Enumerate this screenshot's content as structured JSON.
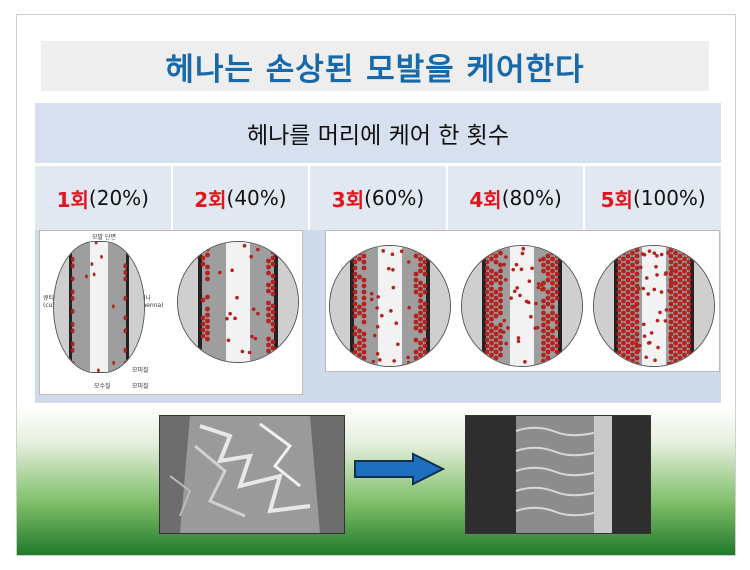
{
  "title": "헤나는 손상된 모발을 케어한다",
  "table_header": "헤나를  머리에 케어 한 횟수",
  "columns": [
    {
      "num": "1회",
      "pct": "(20%)"
    },
    {
      "num": "2회",
      "pct": "(40%)"
    },
    {
      "num": "3회",
      "pct": "(60%)"
    },
    {
      "num": "4회",
      "pct": "(80%)"
    },
    {
      "num": "5회",
      "pct": "(100%)"
    }
  ],
  "diagram_labels": {
    "cross_section": "모발 단면",
    "cuticle": "큐티클\n(cuticle)",
    "henna": "헤나\n(henna)",
    "medulla": "모수질",
    "cortex": "모피질"
  },
  "colors": {
    "title": "#1769aa",
    "accent_red": "#e0161c",
    "henna_dot": "#b3221f",
    "arrow": "#1f6fc0"
  },
  "arrow_icon": "right-arrow-icon"
}
